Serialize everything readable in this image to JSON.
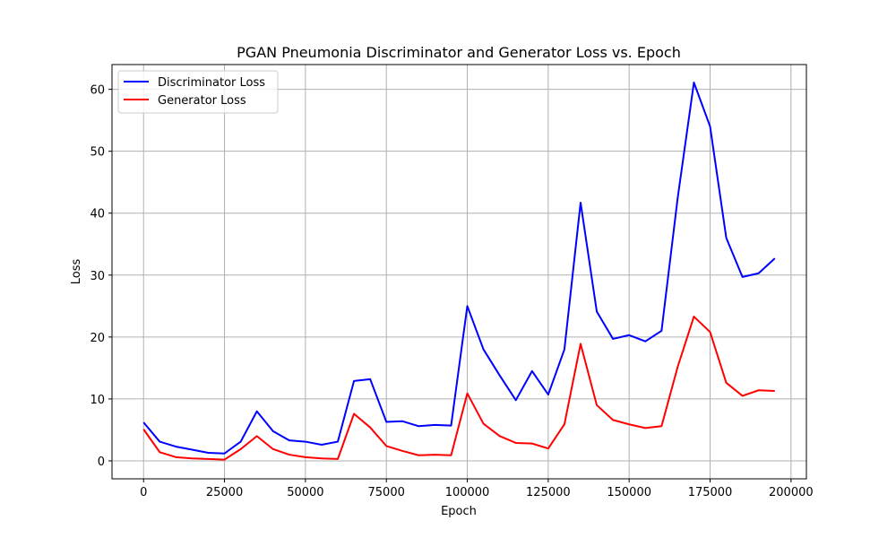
{
  "chart_data": {
    "type": "line",
    "title": "PGAN Pneumonia Discriminator and Generator Loss vs. Epoch",
    "xlabel": "Epoch",
    "ylabel": "Loss",
    "xlim": [
      -9750,
      204750
    ],
    "ylim": [
      -2.9,
      64.0
    ],
    "grid": true,
    "legend_position": "upper-left",
    "x_ticks": [
      0,
      25000,
      50000,
      75000,
      100000,
      125000,
      150000,
      175000,
      200000
    ],
    "x_tick_labels": [
      "0",
      "25000",
      "50000",
      "75000",
      "100000",
      "125000",
      "150000",
      "175000",
      "200000"
    ],
    "y_ticks": [
      0,
      10,
      20,
      30,
      40,
      50,
      60
    ],
    "y_tick_labels": [
      "0",
      "10",
      "20",
      "30",
      "40",
      "50",
      "60"
    ],
    "x": [
      0,
      5000,
      10000,
      15000,
      20000,
      25000,
      30000,
      35000,
      40000,
      45000,
      50000,
      55000,
      60000,
      65000,
      70000,
      75000,
      80000,
      85000,
      90000,
      95000,
      100000,
      105000,
      110000,
      115000,
      120000,
      125000,
      130000,
      135000,
      140000,
      145000,
      150000,
      155000,
      160000,
      165000,
      170000,
      175000,
      180000,
      185000,
      190000,
      195000
    ],
    "series": [
      {
        "name": "Discriminator Loss",
        "color": "#0000ff",
        "values": [
          6.2,
          3.1,
          2.3,
          1.8,
          1.3,
          1.2,
          3.1,
          8.0,
          4.8,
          3.3,
          3.1,
          2.6,
          3.1,
          12.9,
          13.2,
          6.3,
          6.4,
          5.6,
          5.8,
          5.7,
          25.0,
          18.0,
          13.8,
          9.8,
          14.5,
          10.7,
          18.0,
          41.7,
          24.1,
          19.7,
          20.3,
          19.3,
          21.0,
          42.5,
          61.1,
          54.0,
          36.0,
          29.7,
          30.3,
          32.7
        ]
      },
      {
        "name": "Generator Loss",
        "color": "#ff0000",
        "values": [
          5.1,
          1.4,
          0.6,
          0.4,
          0.3,
          0.2,
          1.9,
          4.0,
          1.9,
          1.0,
          0.6,
          0.4,
          0.3,
          7.6,
          5.4,
          2.4,
          1.6,
          0.9,
          1.0,
          0.9,
          10.9,
          6.0,
          4.0,
          2.9,
          2.8,
          2.0,
          5.9,
          18.9,
          9.0,
          6.6,
          5.9,
          5.3,
          5.6,
          15.2,
          23.3,
          20.8,
          12.6,
          10.5,
          11.4,
          11.3
        ]
      }
    ]
  }
}
